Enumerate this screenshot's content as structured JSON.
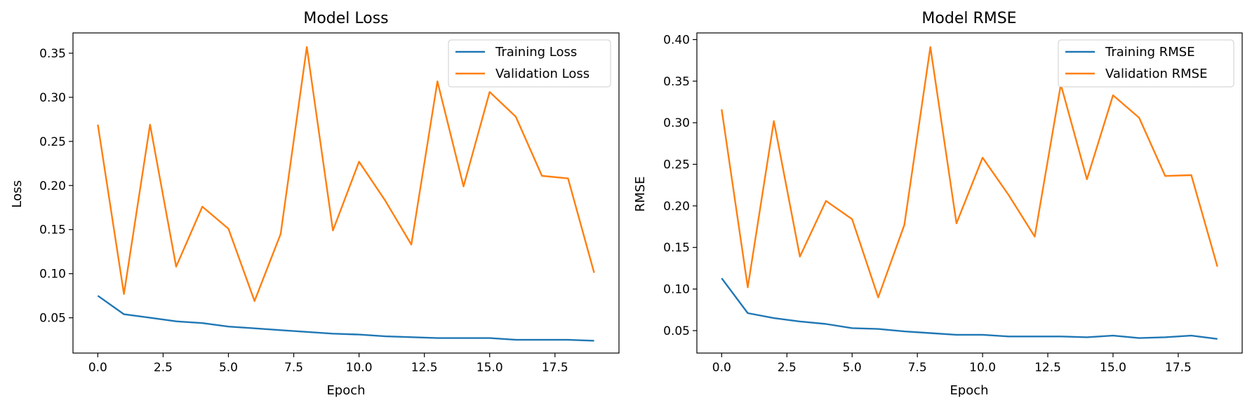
{
  "colors": {
    "training": "#1f77b4",
    "validation": "#ff7f0e"
  },
  "chart_data": [
    {
      "type": "line",
      "title": "Model Loss",
      "xlabel": "Epoch",
      "ylabel": "Loss",
      "xlim": [
        -0.95,
        19.95
      ],
      "ylim": [
        0.01,
        0.373
      ],
      "xticks": [
        0.0,
        2.5,
        5.0,
        7.5,
        10.0,
        12.5,
        15.0,
        17.5
      ],
      "xtick_labels": [
        "0.0",
        "2.5",
        "5.0",
        "7.5",
        "10.0",
        "12.5",
        "15.0",
        "17.5"
      ],
      "yticks": [
        0.05,
        0.1,
        0.15,
        0.2,
        0.25,
        0.3,
        0.35
      ],
      "ytick_labels": [
        "0.05",
        "0.10",
        "0.15",
        "0.20",
        "0.25",
        "0.30",
        "0.35"
      ],
      "legend_position": "top-right",
      "grid": false,
      "x": [
        0,
        1,
        2,
        3,
        4,
        5,
        6,
        7,
        8,
        9,
        10,
        11,
        12,
        13,
        14,
        15,
        16,
        17,
        18,
        19
      ],
      "series": [
        {
          "name": "Training Loss",
          "color_key": "training",
          "values": [
            0.075,
            0.054,
            0.05,
            0.046,
            0.044,
            0.04,
            0.038,
            0.036,
            0.034,
            0.032,
            0.031,
            0.029,
            0.028,
            0.027,
            0.027,
            0.027,
            0.025,
            0.025,
            0.025,
            0.024
          ]
        },
        {
          "name": "Validation Loss",
          "color_key": "validation",
          "values": [
            0.269,
            0.077,
            0.269,
            0.108,
            0.176,
            0.151,
            0.069,
            0.145,
            0.357,
            0.149,
            0.227,
            0.183,
            0.133,
            0.318,
            0.199,
            0.306,
            0.278,
            0.211,
            0.208,
            0.101
          ]
        }
      ]
    },
    {
      "type": "line",
      "title": "Model RMSE",
      "xlabel": "Epoch",
      "ylabel": "RMSE",
      "xlim": [
        -0.95,
        19.95
      ],
      "ylim": [
        0.023,
        0.408
      ],
      "xticks": [
        0.0,
        2.5,
        5.0,
        7.5,
        10.0,
        12.5,
        15.0,
        17.5
      ],
      "xtick_labels": [
        "0.0",
        "2.5",
        "5.0",
        "7.5",
        "10.0",
        "12.5",
        "15.0",
        "17.5"
      ],
      "yticks": [
        0.05,
        0.1,
        0.15,
        0.2,
        0.25,
        0.3,
        0.35,
        0.4
      ],
      "ytick_labels": [
        "0.05",
        "0.10",
        "0.15",
        "0.20",
        "0.25",
        "0.30",
        "0.35",
        "0.40"
      ],
      "legend_position": "top-right",
      "grid": false,
      "x": [
        0,
        1,
        2,
        3,
        4,
        5,
        6,
        7,
        8,
        9,
        10,
        11,
        12,
        13,
        14,
        15,
        16,
        17,
        18,
        19
      ],
      "series": [
        {
          "name": "Training RMSE",
          "color_key": "training",
          "values": [
            0.113,
            0.071,
            0.065,
            0.061,
            0.058,
            0.053,
            0.052,
            0.049,
            0.047,
            0.045,
            0.045,
            0.043,
            0.043,
            0.043,
            0.042,
            0.044,
            0.041,
            0.042,
            0.044,
            0.04
          ]
        },
        {
          "name": "Validation RMSE",
          "color_key": "validation",
          "values": [
            0.316,
            0.102,
            0.302,
            0.139,
            0.206,
            0.184,
            0.09,
            0.177,
            0.391,
            0.179,
            0.258,
            0.213,
            0.163,
            0.346,
            0.232,
            0.333,
            0.306,
            0.236,
            0.237,
            0.127
          ]
        }
      ]
    }
  ]
}
